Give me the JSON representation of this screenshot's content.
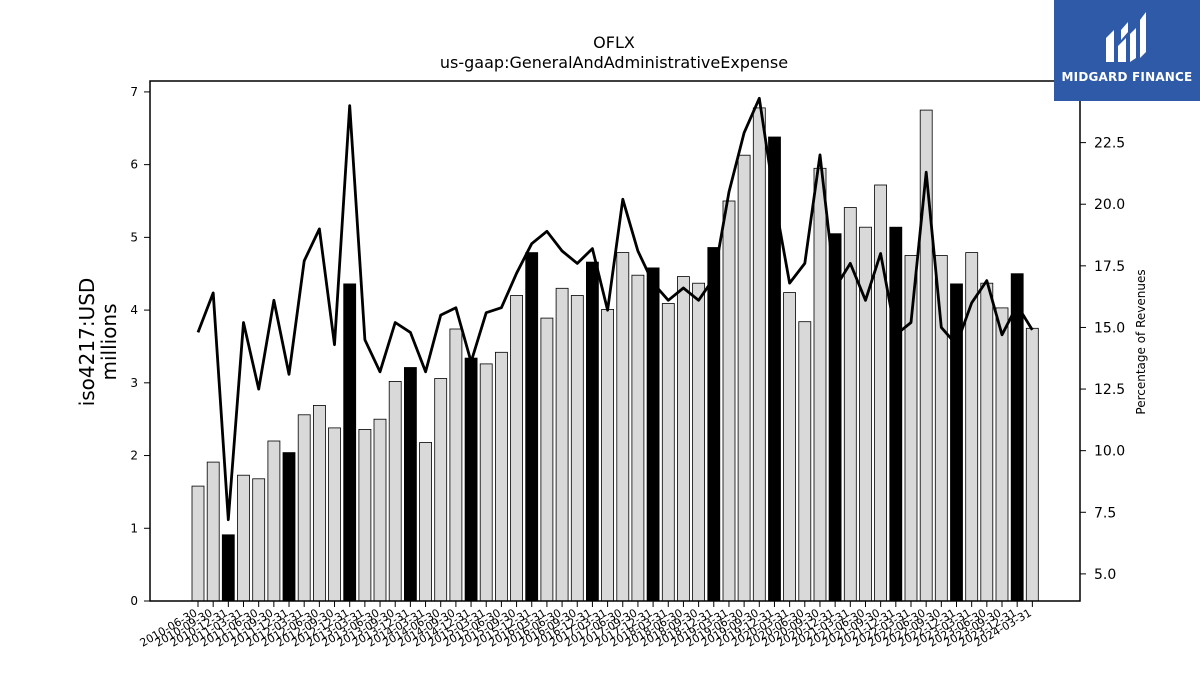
{
  "chart_data": {
    "type": "bar",
    "title": "OFLX",
    "subtitle": "us-gaap:GeneralAndAdministrativeExpense",
    "ylabel_line1": "iso4217:USD",
    "ylabel_line2": "millions",
    "y2label": "Percentage of Revenues",
    "ylim": [
      0,
      7.15
    ],
    "y2lim": [
      3.9,
      25.0
    ],
    "yticks": [
      "0",
      "1",
      "2",
      "3",
      "4",
      "5",
      "6",
      "7"
    ],
    "y2ticks": [
      "5.0",
      "7.5",
      "10.0",
      "12.5",
      "15.0",
      "17.5",
      "20.0",
      "22.5"
    ],
    "grid": false,
    "categories": [
      "2010-06-30",
      "2010-09-30",
      "2010-12-31",
      "2011-03-31",
      "2011-06-30",
      "2011-09-30",
      "2011-12-31",
      "2012-03-31",
      "2012-06-30",
      "2012-09-30",
      "2012-12-31",
      "2013-03-31",
      "2013-06-30",
      "2013-09-30",
      "2013-12-31",
      "2014-03-31",
      "2014-06-30",
      "2014-09-30",
      "2014-12-31",
      "2015-03-31",
      "2015-06-30",
      "2015-09-30",
      "2015-12-31",
      "2016-03-31",
      "2016-06-30",
      "2016-09-30",
      "2016-12-31",
      "2017-03-31",
      "2017-06-30",
      "2017-09-30",
      "2017-12-31",
      "2018-03-31",
      "2018-06-30",
      "2018-09-30",
      "2018-12-31",
      "2019-03-31",
      "2019-06-30",
      "2019-09-30",
      "2019-12-31",
      "2020-03-31",
      "2020-06-30",
      "2020-09-30",
      "2020-12-31",
      "2021-03-31",
      "2021-06-30",
      "2021-09-30",
      "2021-12-31",
      "2022-03-31",
      "2022-06-30",
      "2022-09-30",
      "2022-12-31",
      "2023-03-31",
      "2023-06-30",
      "2023-09-30",
      "2023-12-31",
      "2024-03-31"
    ],
    "series": [
      {
        "type": "bar",
        "values": [
          1.58,
          1.91,
          0.91,
          1.73,
          1.68,
          2.2,
          2.04,
          2.56,
          2.69,
          2.38,
          4.36,
          2.36,
          2.5,
          3.02,
          3.21,
          2.18,
          3.06,
          3.74,
          3.34,
          3.26,
          3.42,
          4.2,
          4.79,
          3.89,
          4.3,
          4.2,
          4.66,
          4.01,
          4.79,
          4.48,
          4.58,
          4.09,
          4.46,
          4.37,
          4.86,
          5.5,
          6.13,
          6.78,
          6.38,
          4.24,
          3.84,
          5.95,
          5.05,
          5.41,
          5.14,
          5.72,
          5.14,
          4.75,
          6.75,
          4.75,
          4.36,
          4.79,
          4.37,
          4.03,
          4.5,
          3.75
        ],
        "highlight_color": "#000000",
        "bar_color": "#d9d9d9"
      },
      {
        "type": "line",
        "axis": "right",
        "values": [
          14.8,
          16.4,
          7.2,
          15.2,
          12.5,
          16.1,
          13.1,
          17.7,
          19.0,
          14.3,
          24.0,
          14.5,
          13.2,
          15.2,
          14.8,
          13.2,
          15.5,
          15.8,
          13.6,
          15.6,
          15.8,
          17.2,
          18.4,
          18.9,
          18.1,
          17.6,
          18.2,
          15.7,
          20.2,
          18.1,
          16.8,
          16.1,
          16.6,
          16.1,
          17.0,
          20.5,
          22.9,
          24.3,
          20.2,
          16.8,
          17.6,
          22.0,
          16.6,
          17.6,
          16.1,
          18.0,
          14.7,
          15.2,
          21.3,
          15.0,
          14.3,
          16.0,
          16.9,
          14.7,
          15.9,
          14.9
        ]
      }
    ]
  },
  "logo": {
    "text": "MIDGARD FINANCE",
    "color": "#2f5aa8"
  }
}
